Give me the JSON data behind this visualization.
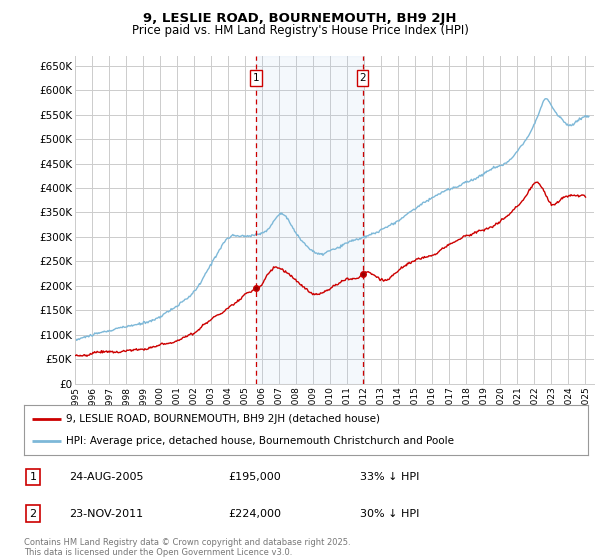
{
  "title": "9, LESLIE ROAD, BOURNEMOUTH, BH9 2JH",
  "subtitle": "Price paid vs. HM Land Registry's House Price Index (HPI)",
  "ylim": [
    0,
    670000
  ],
  "yticks": [
    0,
    50000,
    100000,
    150000,
    200000,
    250000,
    300000,
    350000,
    400000,
    450000,
    500000,
    550000,
    600000,
    650000
  ],
  "ytick_labels": [
    "£0",
    "£50K",
    "£100K",
    "£150K",
    "£200K",
    "£250K",
    "£300K",
    "£350K",
    "£400K",
    "£450K",
    "£500K",
    "£550K",
    "£600K",
    "£650K"
  ],
  "background_color": "#ffffff",
  "plot_bg_color": "#ffffff",
  "grid_color": "#cccccc",
  "hpi_color": "#7db8d8",
  "price_color": "#cc0000",
  "sale1_date_x": 2005.65,
  "sale1_price": 195000,
  "sale2_date_x": 2011.9,
  "sale2_price": 224000,
  "legend_line1": "9, LESLIE ROAD, BOURNEMOUTH, BH9 2JH (detached house)",
  "legend_line2": "HPI: Average price, detached house, Bournemouth Christchurch and Poole",
  "footer": "Contains HM Land Registry data © Crown copyright and database right 2025.\nThis data is licensed under the Open Government Licence v3.0.",
  "xmin": 1995,
  "xmax": 2025.5
}
